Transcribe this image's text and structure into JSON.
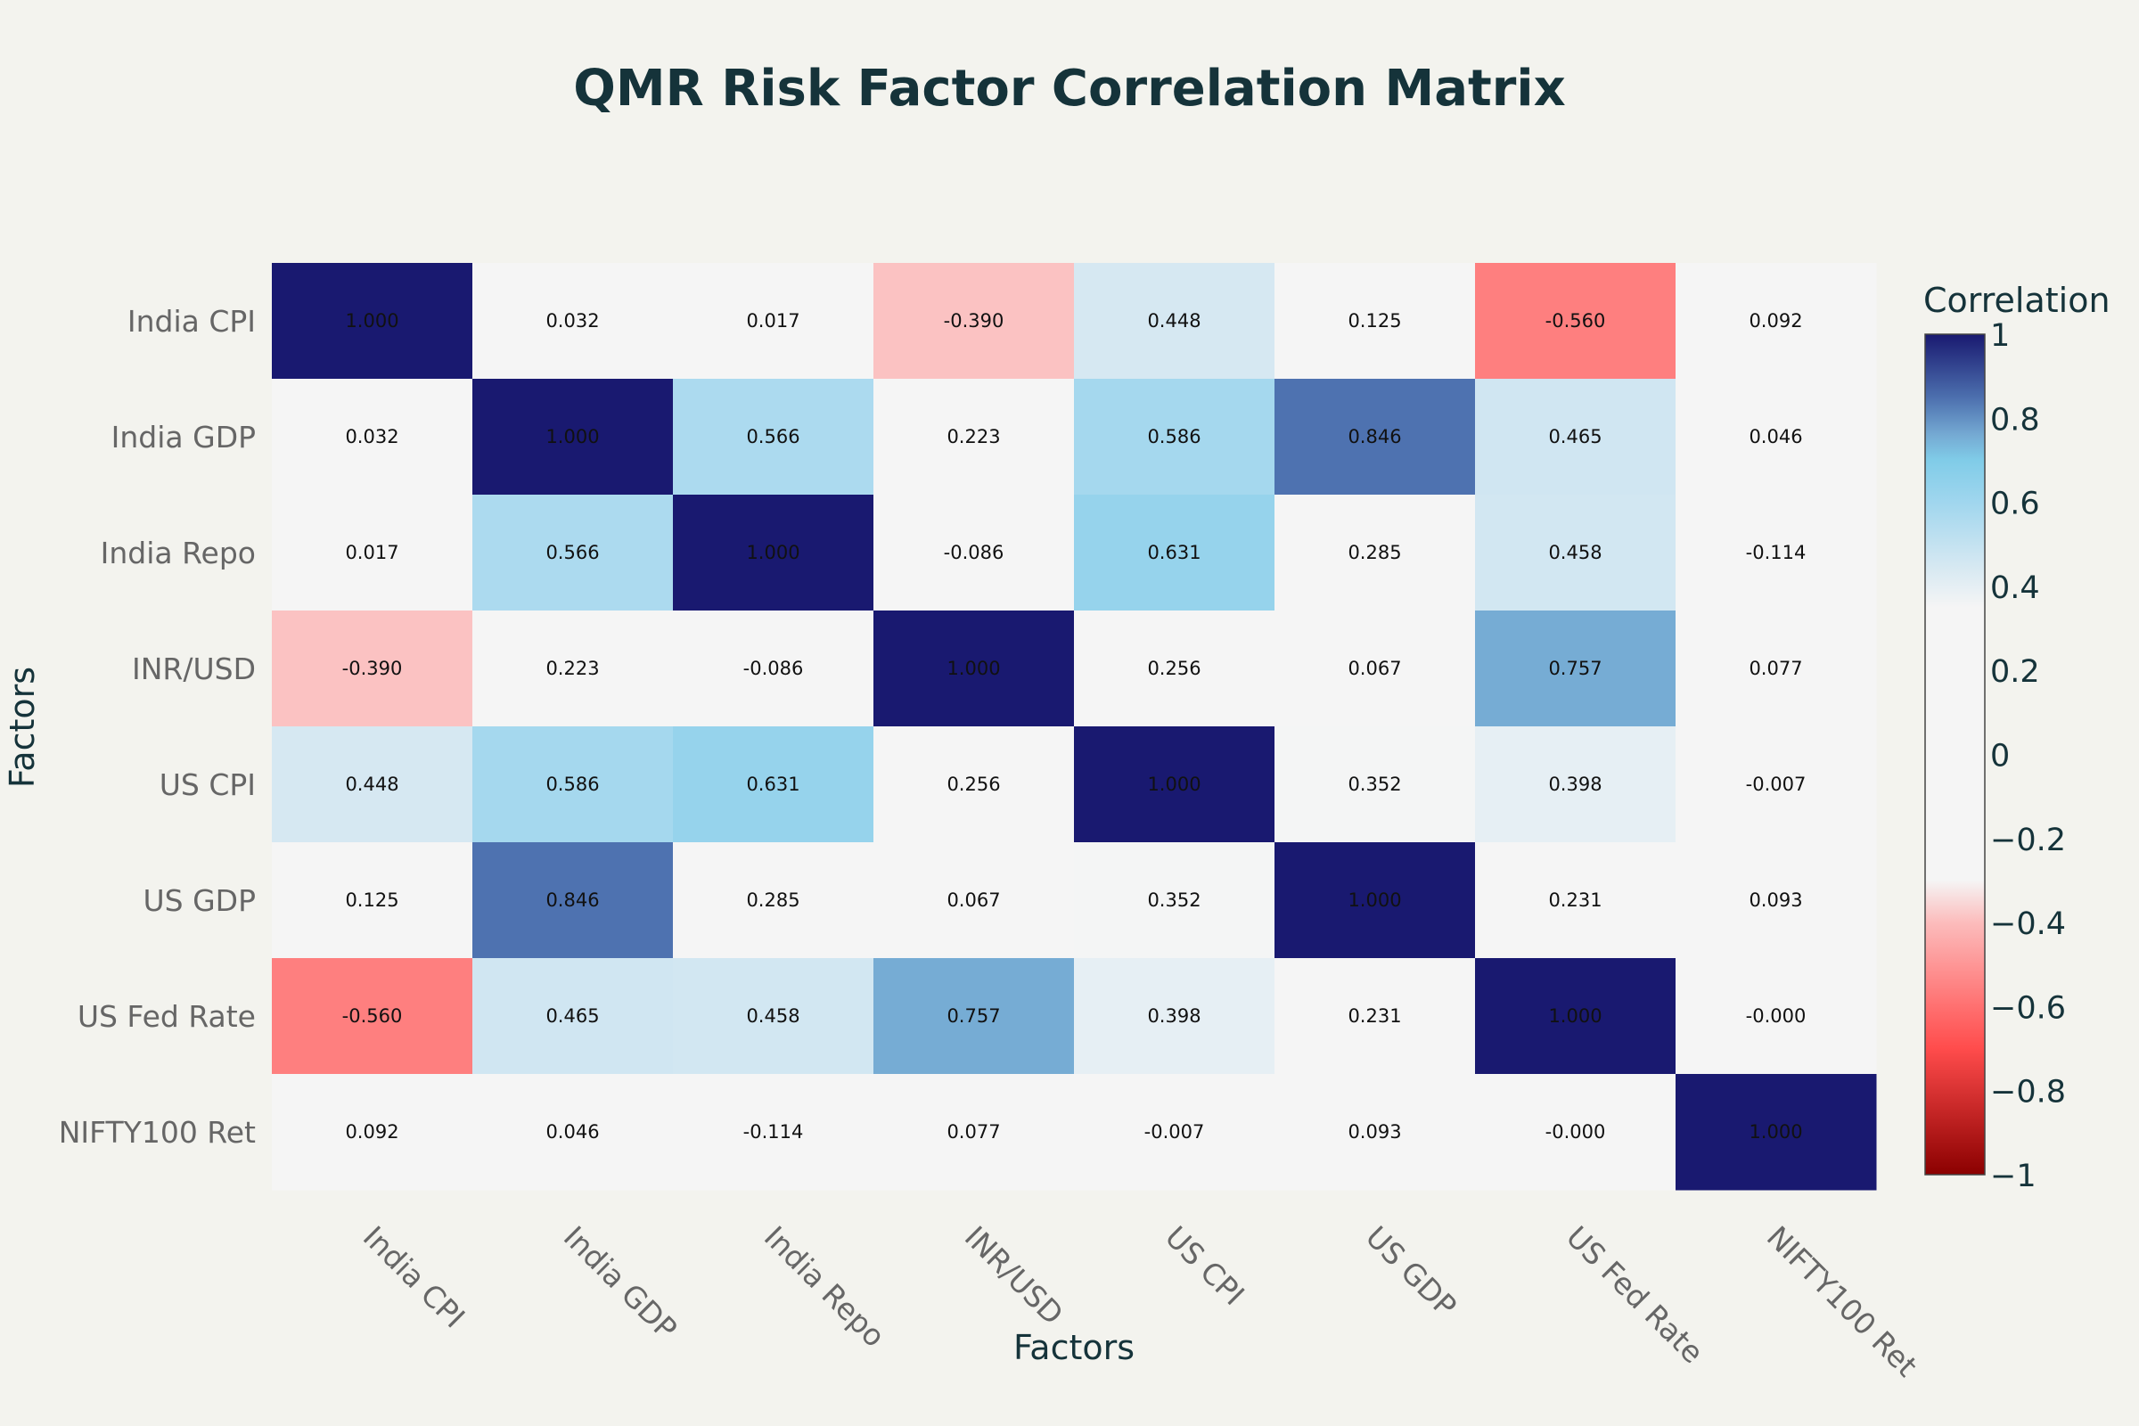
{
  "chart_data": {
    "type": "heatmap",
    "title": "QMR Risk Factor Correlation Matrix",
    "xlabel": "Factors",
    "ylabel": "Factors",
    "x_categories": [
      "India CPI",
      "India GDP",
      "India Repo",
      "INR/USD",
      "US CPI",
      "US GDP",
      "US Fed Rate",
      "NIFTY100 Ret"
    ],
    "y_categories": [
      "India CPI",
      "India GDP",
      "India Repo",
      "INR/USD",
      "US CPI",
      "US GDP",
      "US Fed Rate",
      "NIFTY100 Ret"
    ],
    "z": [
      [
        1.0,
        0.032,
        0.017,
        -0.39,
        0.448,
        0.125,
        -0.56,
        0.092
      ],
      [
        0.032,
        1.0,
        0.566,
        0.223,
        0.586,
        0.846,
        0.465,
        0.046
      ],
      [
        0.017,
        0.566,
        1.0,
        -0.086,
        0.631,
        0.285,
        0.458,
        -0.114
      ],
      [
        -0.39,
        0.223,
        -0.086,
        1.0,
        0.256,
        0.067,
        0.757,
        0.077
      ],
      [
        0.448,
        0.586,
        0.631,
        0.256,
        1.0,
        0.352,
        0.398,
        -0.007
      ],
      [
        0.125,
        0.846,
        0.285,
        0.067,
        0.352,
        1.0,
        0.231,
        0.093
      ],
      [
        -0.56,
        0.465,
        0.458,
        0.757,
        0.398,
        0.231,
        1.0,
        -0.0
      ],
      [
        0.092,
        0.046,
        -0.114,
        0.077,
        -0.007,
        0.093,
        -0.0,
        1.0
      ]
    ],
    "cell_labels": [
      [
        "1.000",
        "0.032",
        "0.017",
        "-0.390",
        "0.448",
        "0.125",
        "-0.560",
        "0.092"
      ],
      [
        "0.032",
        "1.000",
        "0.566",
        "0.223",
        "0.586",
        "0.846",
        "0.465",
        "0.046"
      ],
      [
        "0.017",
        "0.566",
        "1.000",
        "-0.086",
        "0.631",
        "0.285",
        "0.458",
        "-0.114"
      ],
      [
        "-0.390",
        "0.223",
        "-0.086",
        "1.000",
        "0.256",
        "0.067",
        "0.757",
        "0.077"
      ],
      [
        "0.448",
        "0.586",
        "0.631",
        "0.256",
        "1.000",
        "0.352",
        "0.398",
        "-0.007"
      ],
      [
        "0.125",
        "0.846",
        "0.285",
        "0.067",
        "0.352",
        "1.000",
        "0.231",
        "0.093"
      ],
      [
        "-0.560",
        "0.465",
        "0.458",
        "0.757",
        "0.398",
        "0.231",
        "1.000",
        "-0.000"
      ],
      [
        "0.092",
        "0.046",
        "-0.114",
        "0.077",
        "-0.007",
        "0.093",
        "-0.000",
        "1.000"
      ]
    ],
    "zrange": [
      -1,
      1
    ],
    "colorbar": {
      "title": "Correlation",
      "ticks": [
        1,
        0.8,
        0.6,
        0.4,
        0.2,
        0,
        -0.2,
        -0.4,
        -0.6,
        -0.8,
        -1
      ],
      "tick_labels": [
        "1",
        "0.8",
        "0.6",
        "0.4",
        "0.2",
        "0",
        "−0.2",
        "−0.4",
        "−0.6",
        "−0.8",
        "−1"
      ],
      "colorscale": [
        [
          -1.0,
          "#8b0000"
        ],
        [
          -0.7,
          "#ff4c4c"
        ],
        [
          -0.6,
          "#ff7070"
        ],
        [
          -0.4,
          "#fcbcbc"
        ],
        [
          -0.3,
          "#f5f5f5"
        ],
        [
          0.35,
          "#f5f5f5"
        ],
        [
          0.45,
          "#d5e8f2"
        ],
        [
          0.6,
          "#a0d6ee"
        ],
        [
          0.7,
          "#80cce8"
        ],
        [
          0.76,
          "#75aad3"
        ],
        [
          0.85,
          "#4c6fae"
        ],
        [
          1.0,
          "#191970"
        ]
      ]
    },
    "colors": {
      "background": "#f3f3ee",
      "title": "#15333a",
      "tick": "#666666"
    }
  }
}
